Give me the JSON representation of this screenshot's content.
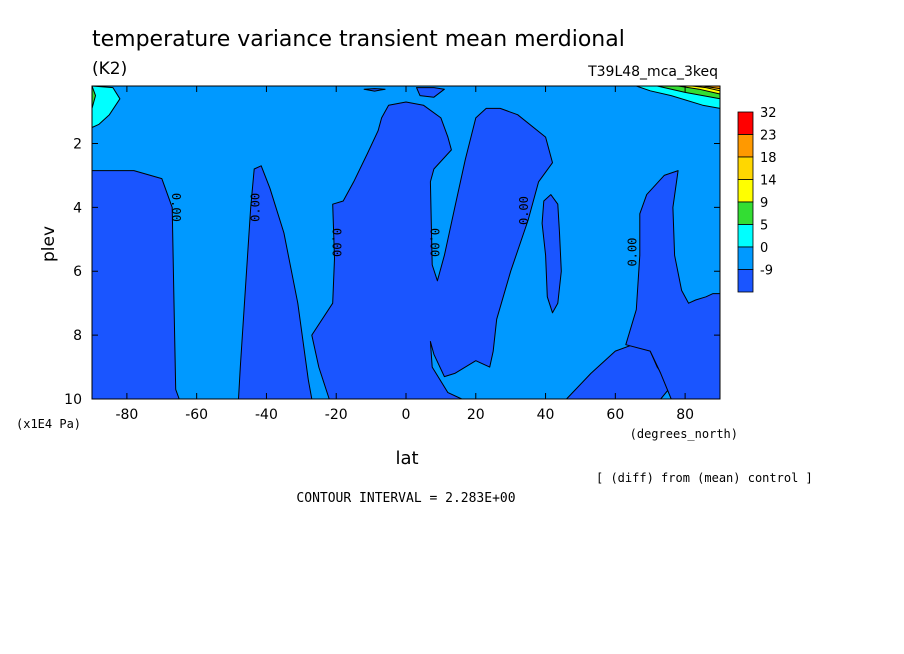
{
  "chart_data": {
    "type": "heatmap",
    "title": "temperature variance transient mean merdional",
    "units": "(K2)",
    "run_label": "T39L48_mca_3keq",
    "xlabel": "lat",
    "x_units": "(degrees_north)",
    "ylabel": "plev",
    "y_units": "(x1E4 Pa)",
    "xlim": [
      -90,
      90
    ],
    "ylim": [
      10,
      0.2
    ],
    "x_ticks": [
      "-80",
      "-60",
      "-40",
      "-20",
      "0",
      "20",
      "40",
      "60",
      "80"
    ],
    "x_tick_values": [
      -80,
      -60,
      -40,
      -20,
      0,
      20,
      40,
      60,
      80
    ],
    "y_ticks": [
      "2",
      "4",
      "6",
      "8",
      "10"
    ],
    "y_tick_values": [
      2,
      4,
      6,
      8,
      10
    ],
    "colorbar": {
      "labels": [
        "32",
        "23",
        "18",
        "14",
        "9",
        "5",
        "0",
        "-9"
      ],
      "colors": [
        "#ff0000",
        "#ff9900",
        "#ffd700",
        "#ffff00",
        "#33dd33",
        "#00ffff",
        "#0099ff",
        "#1a55ff"
      ]
    },
    "contour_labels": [
      {
        "text": "0.00",
        "lat": -66,
        "plev": 4.0,
        "rotate": 90
      },
      {
        "text": "0.00",
        "lat": -43,
        "plev": 4.0,
        "rotate": -90
      },
      {
        "text": "0.00",
        "lat": -20,
        "plev": 5.1,
        "rotate": 90
      },
      {
        "text": "0.00",
        "lat": 8,
        "plev": 5.1,
        "rotate": 90
      },
      {
        "text": "0.00",
        "lat": 34,
        "plev": 4.1,
        "rotate": -90
      },
      {
        "text": "0.00",
        "lat": 65,
        "plev": 5.4,
        "rotate": -90
      }
    ],
    "regions": [
      {
        "level": "-9",
        "polygon": [
          [
            -90,
            2.85
          ],
          [
            -78,
            2.85
          ],
          [
            -70,
            3.1
          ],
          [
            -67,
            4.0
          ],
          [
            -66.5,
            7.0
          ],
          [
            -66,
            9.7
          ],
          [
            -65,
            10
          ],
          [
            -90,
            10
          ]
        ]
      },
      {
        "level": "-9",
        "polygon": [
          [
            -48,
            10
          ],
          [
            -47.5,
            9.0
          ],
          [
            -46,
            6.5
          ],
          [
            -44.5,
            4.0
          ],
          [
            -43.5,
            2.8
          ],
          [
            -41.5,
            2.7
          ],
          [
            -39,
            3.4
          ],
          [
            -35,
            4.8
          ],
          [
            -31,
            7.0
          ],
          [
            -28,
            9.4
          ],
          [
            -27,
            10
          ]
        ]
      },
      {
        "level": "-9",
        "polygon": [
          [
            -22,
            10
          ],
          [
            -25,
            9.0
          ],
          [
            -27,
            8.0
          ],
          [
            -21,
            7.0
          ],
          [
            -20.5,
            5.6
          ],
          [
            -21,
            3.9
          ],
          [
            -18,
            3.8
          ],
          [
            -15,
            3.2
          ],
          [
            -11,
            2.3
          ],
          [
            -8,
            1.6
          ],
          [
            -7,
            1.2
          ],
          [
            -5,
            0.8
          ],
          [
            0,
            0.7
          ],
          [
            5,
            0.8
          ],
          [
            10,
            1.2
          ],
          [
            12,
            1.8
          ],
          [
            13,
            2.2
          ],
          [
            8,
            2.8
          ],
          [
            7,
            3.2
          ],
          [
            7.5,
            5.8
          ],
          [
            9,
            6.3
          ],
          [
            11,
            5.5
          ],
          [
            14,
            4.0
          ],
          [
            17,
            2.5
          ],
          [
            20,
            1.2
          ],
          [
            23,
            0.9
          ],
          [
            27,
            0.9
          ],
          [
            32,
            1.1
          ],
          [
            40,
            1.8
          ],
          [
            42,
            2.6
          ],
          [
            38,
            3.2
          ],
          [
            35,
            4.4
          ],
          [
            30,
            6.0
          ],
          [
            26,
            7.5
          ],
          [
            25,
            8.5
          ],
          [
            24,
            9.0
          ],
          [
            20,
            8.8
          ],
          [
            14,
            9.2
          ],
          [
            11,
            9.3
          ],
          [
            8,
            8.6
          ],
          [
            7,
            8.2
          ],
          [
            7.5,
            9.0
          ],
          [
            12,
            9.8
          ],
          [
            16,
            10
          ]
        ]
      },
      {
        "level": "-9",
        "polygon": [
          [
            39.5,
            3.8
          ],
          [
            41.5,
            3.6
          ],
          [
            43.5,
            3.9
          ],
          [
            44,
            4.8
          ],
          [
            44.5,
            6.0
          ],
          [
            43.5,
            7.0
          ],
          [
            42,
            7.3
          ],
          [
            40.5,
            6.8
          ],
          [
            40,
            5.5
          ],
          [
            39,
            4.5
          ]
        ]
      },
      {
        "level": "-9",
        "polygon": [
          [
            46,
            10
          ],
          [
            53,
            9.2
          ],
          [
            60,
            8.5
          ],
          [
            65,
            8.3
          ],
          [
            68,
            8.2
          ],
          [
            70,
            8.5
          ],
          [
            72,
            9.0
          ],
          [
            74,
            9.3
          ],
          [
            76,
            9.6
          ],
          [
            73,
            10
          ]
        ]
      },
      {
        "level": "-9",
        "polygon": [
          [
            63,
            8.3
          ],
          [
            66,
            7.2
          ],
          [
            67,
            5.5
          ],
          [
            67,
            4.2
          ],
          [
            69,
            3.6
          ],
          [
            74,
            3.0
          ],
          [
            78,
            2.85
          ],
          [
            76.5,
            4.0
          ],
          [
            77,
            5.5
          ],
          [
            79,
            6.6
          ],
          [
            81,
            7.0
          ],
          [
            83,
            6.9
          ],
          [
            86,
            6.8
          ],
          [
            88,
            6.7
          ],
          [
            90,
            6.7
          ],
          [
            90,
            10
          ],
          [
            76,
            10
          ],
          [
            73,
            9.2
          ],
          [
            70,
            8.5
          ]
        ]
      },
      {
        "level": "-9",
        "polygon": [
          [
            -12,
            0.3
          ],
          [
            -9,
            0.28
          ],
          [
            -6,
            0.3
          ],
          [
            -9,
            0.36
          ]
        ]
      },
      {
        "level": "-9",
        "polygon": [
          [
            3,
            0.25
          ],
          [
            8,
            0.25
          ],
          [
            11,
            0.3
          ],
          [
            8,
            0.55
          ],
          [
            4,
            0.5
          ]
        ]
      },
      {
        "level": "5",
        "polygon": [
          [
            -90,
            0.2
          ],
          [
            -84,
            0.25
          ],
          [
            -82,
            0.6
          ],
          [
            -85,
            1.1
          ],
          [
            -88,
            1.4
          ],
          [
            -90,
            1.5
          ]
        ]
      },
      {
        "level": "9",
        "polygon": [
          [
            -90,
            0.2
          ],
          [
            -89,
            0.5
          ],
          [
            -90,
            0.9
          ]
        ]
      },
      {
        "level": "5",
        "polygon": [
          [
            66,
            0.2
          ],
          [
            90,
            0.2
          ],
          [
            90,
            0.9
          ],
          [
            85,
            0.8
          ],
          [
            76,
            0.5
          ],
          [
            70,
            0.35
          ]
        ]
      },
      {
        "level": "9",
        "polygon": [
          [
            72,
            0.2
          ],
          [
            90,
            0.2
          ],
          [
            90,
            0.6
          ],
          [
            80,
            0.4
          ]
        ]
      },
      {
        "level": "14",
        "polygon": [
          [
            78,
            0.2
          ],
          [
            90,
            0.2
          ],
          [
            90,
            0.45
          ],
          [
            84,
            0.3
          ]
        ]
      },
      {
        "level": "18",
        "polygon": [
          [
            82,
            0.2
          ],
          [
            90,
            0.2
          ],
          [
            90,
            0.35
          ],
          [
            86,
            0.25
          ]
        ]
      },
      {
        "level": "23",
        "polygon": [
          [
            85,
            0.2
          ],
          [
            90,
            0.2
          ],
          [
            90,
            0.28
          ]
        ]
      }
    ]
  },
  "footer": {
    "diff_note": "[ (diff) from (mean) control ]",
    "contour_interval": "CONTOUR INTERVAL = 2.283E+00"
  }
}
